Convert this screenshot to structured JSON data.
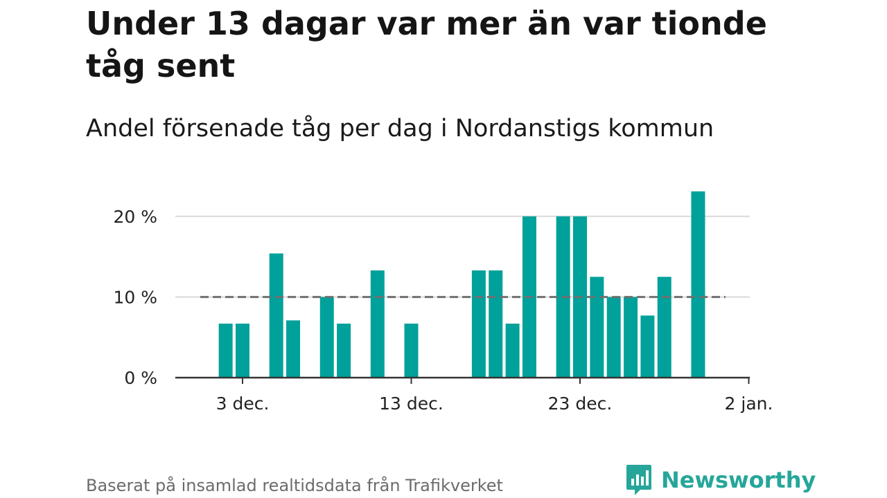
{
  "title": "Under 13 dagar var mer än var tionde tåg sent",
  "subtitle": "Andel försenade tåg per dag i Nordanstigs kommun",
  "footer": {
    "source": "Baserat på insamlad realtidsdata från Trafikverket",
    "brand": "Newsworthy",
    "brand_icon": "bar-chart-speech-bubble-icon",
    "brand_color": "#26a69a"
  },
  "chart_data": {
    "type": "bar",
    "x": [
      "2023-11-30",
      "2023-12-01",
      "2023-12-02",
      "2023-12-03",
      "2023-12-04",
      "2023-12-05",
      "2023-12-06",
      "2023-12-07",
      "2023-12-08",
      "2023-12-09",
      "2023-12-10",
      "2023-12-11",
      "2023-12-12",
      "2023-12-13",
      "2023-12-14",
      "2023-12-15",
      "2023-12-16",
      "2023-12-17",
      "2023-12-18",
      "2023-12-19",
      "2023-12-20",
      "2023-12-21",
      "2023-12-22",
      "2023-12-23",
      "2023-12-24",
      "2023-12-25",
      "2023-12-26",
      "2023-12-27",
      "2023-12-28",
      "2023-12-29",
      "2023-12-30",
      "2023-12-31"
    ],
    "values": [
      null,
      null,
      6.7,
      6.7,
      null,
      15.4,
      7.1,
      null,
      10.0,
      6.7,
      null,
      13.3,
      null,
      6.7,
      null,
      null,
      null,
      13.3,
      13.3,
      6.7,
      20.0,
      null,
      20.0,
      20.0,
      12.5,
      10.0,
      10.0,
      7.7,
      12.5,
      null,
      23.1,
      null
    ],
    "reference_line": 10,
    "ylim": [
      0,
      23.5
    ],
    "yticks": [
      0,
      10,
      20
    ],
    "ytick_labels": [
      "0 %",
      "10 %",
      "20 %"
    ],
    "xticks": [
      "2023-12-03",
      "2023-12-13",
      "2023-12-23",
      "2024-01-02"
    ],
    "xtick_labels": [
      "3 dec.",
      "13 dec.",
      "23 dec.",
      "2 jan."
    ],
    "grid": true,
    "bar_color": "#00a19a",
    "reference_color": "#707070"
  }
}
